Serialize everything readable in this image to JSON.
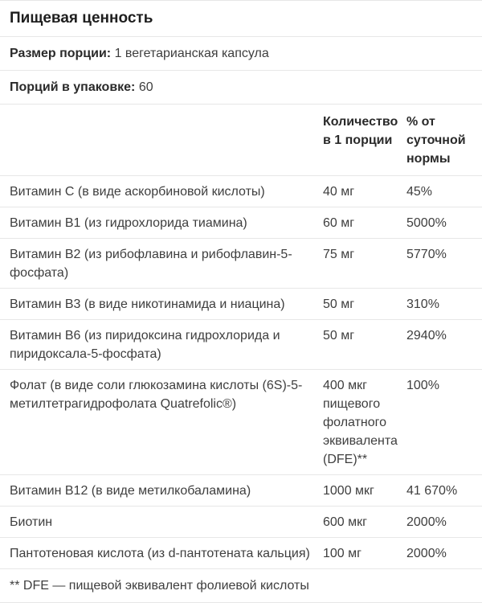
{
  "table": {
    "title": "Пищевая ценность",
    "serving_size": {
      "label": "Размер порции:",
      "value": "1 вегетарианская капсула"
    },
    "servings_per_container": {
      "label": "Порций в упаковке:",
      "value": "60"
    },
    "columns": {
      "amount_header": "Количество в 1 порции",
      "dv_header": "% от суточной нормы"
    },
    "rows": [
      {
        "name": "Витамин C (в виде аскорбиновой кислоты)",
        "amount": "40 мг",
        "dv": "45%"
      },
      {
        "name": "Витамин B1 (из гидрохлорида тиамина)",
        "amount": "60 мг",
        "dv": "5000%"
      },
      {
        "name": "Витамин B2 (из рибофлавина и рибофлавин-5-фосфата)",
        "amount": "75 мг",
        "dv": "5770%"
      },
      {
        "name": "Витамин B3 (в виде никотинамида и ниацина)",
        "amount": "50 мг",
        "dv": "310%"
      },
      {
        "name": "Витамин B6 (из пиридоксина гидрохлорида и пиридоксала-5-фосфата)",
        "amount": "50 мг",
        "dv": "2940%"
      },
      {
        "name": "Фолат (в виде соли глюкозамина кислоты (6S)-5-метилтетрагидрофолата Quatrefolic®)",
        "amount": "400 мкг пищевого фолатного эквивалента (DFE)**",
        "dv": "100%"
      },
      {
        "name": "Витамин B12 (в виде метилкобаламина)",
        "amount": "1000 мкг",
        "dv": "41 670%"
      },
      {
        "name": "Биотин",
        "amount": "600 мкг",
        "dv": "2000%"
      },
      {
        "name": "Пантотеновая кислота (из d-пантотената кальция)",
        "amount": "100 мг",
        "dv": "2000%"
      }
    ],
    "footnote": "** DFE — пищевой эквивалент фолиевой кислоты",
    "colors": {
      "separator": "#e7e7e7",
      "text": "#3e3e3e",
      "heading_text": "#1e1e1e"
    }
  }
}
